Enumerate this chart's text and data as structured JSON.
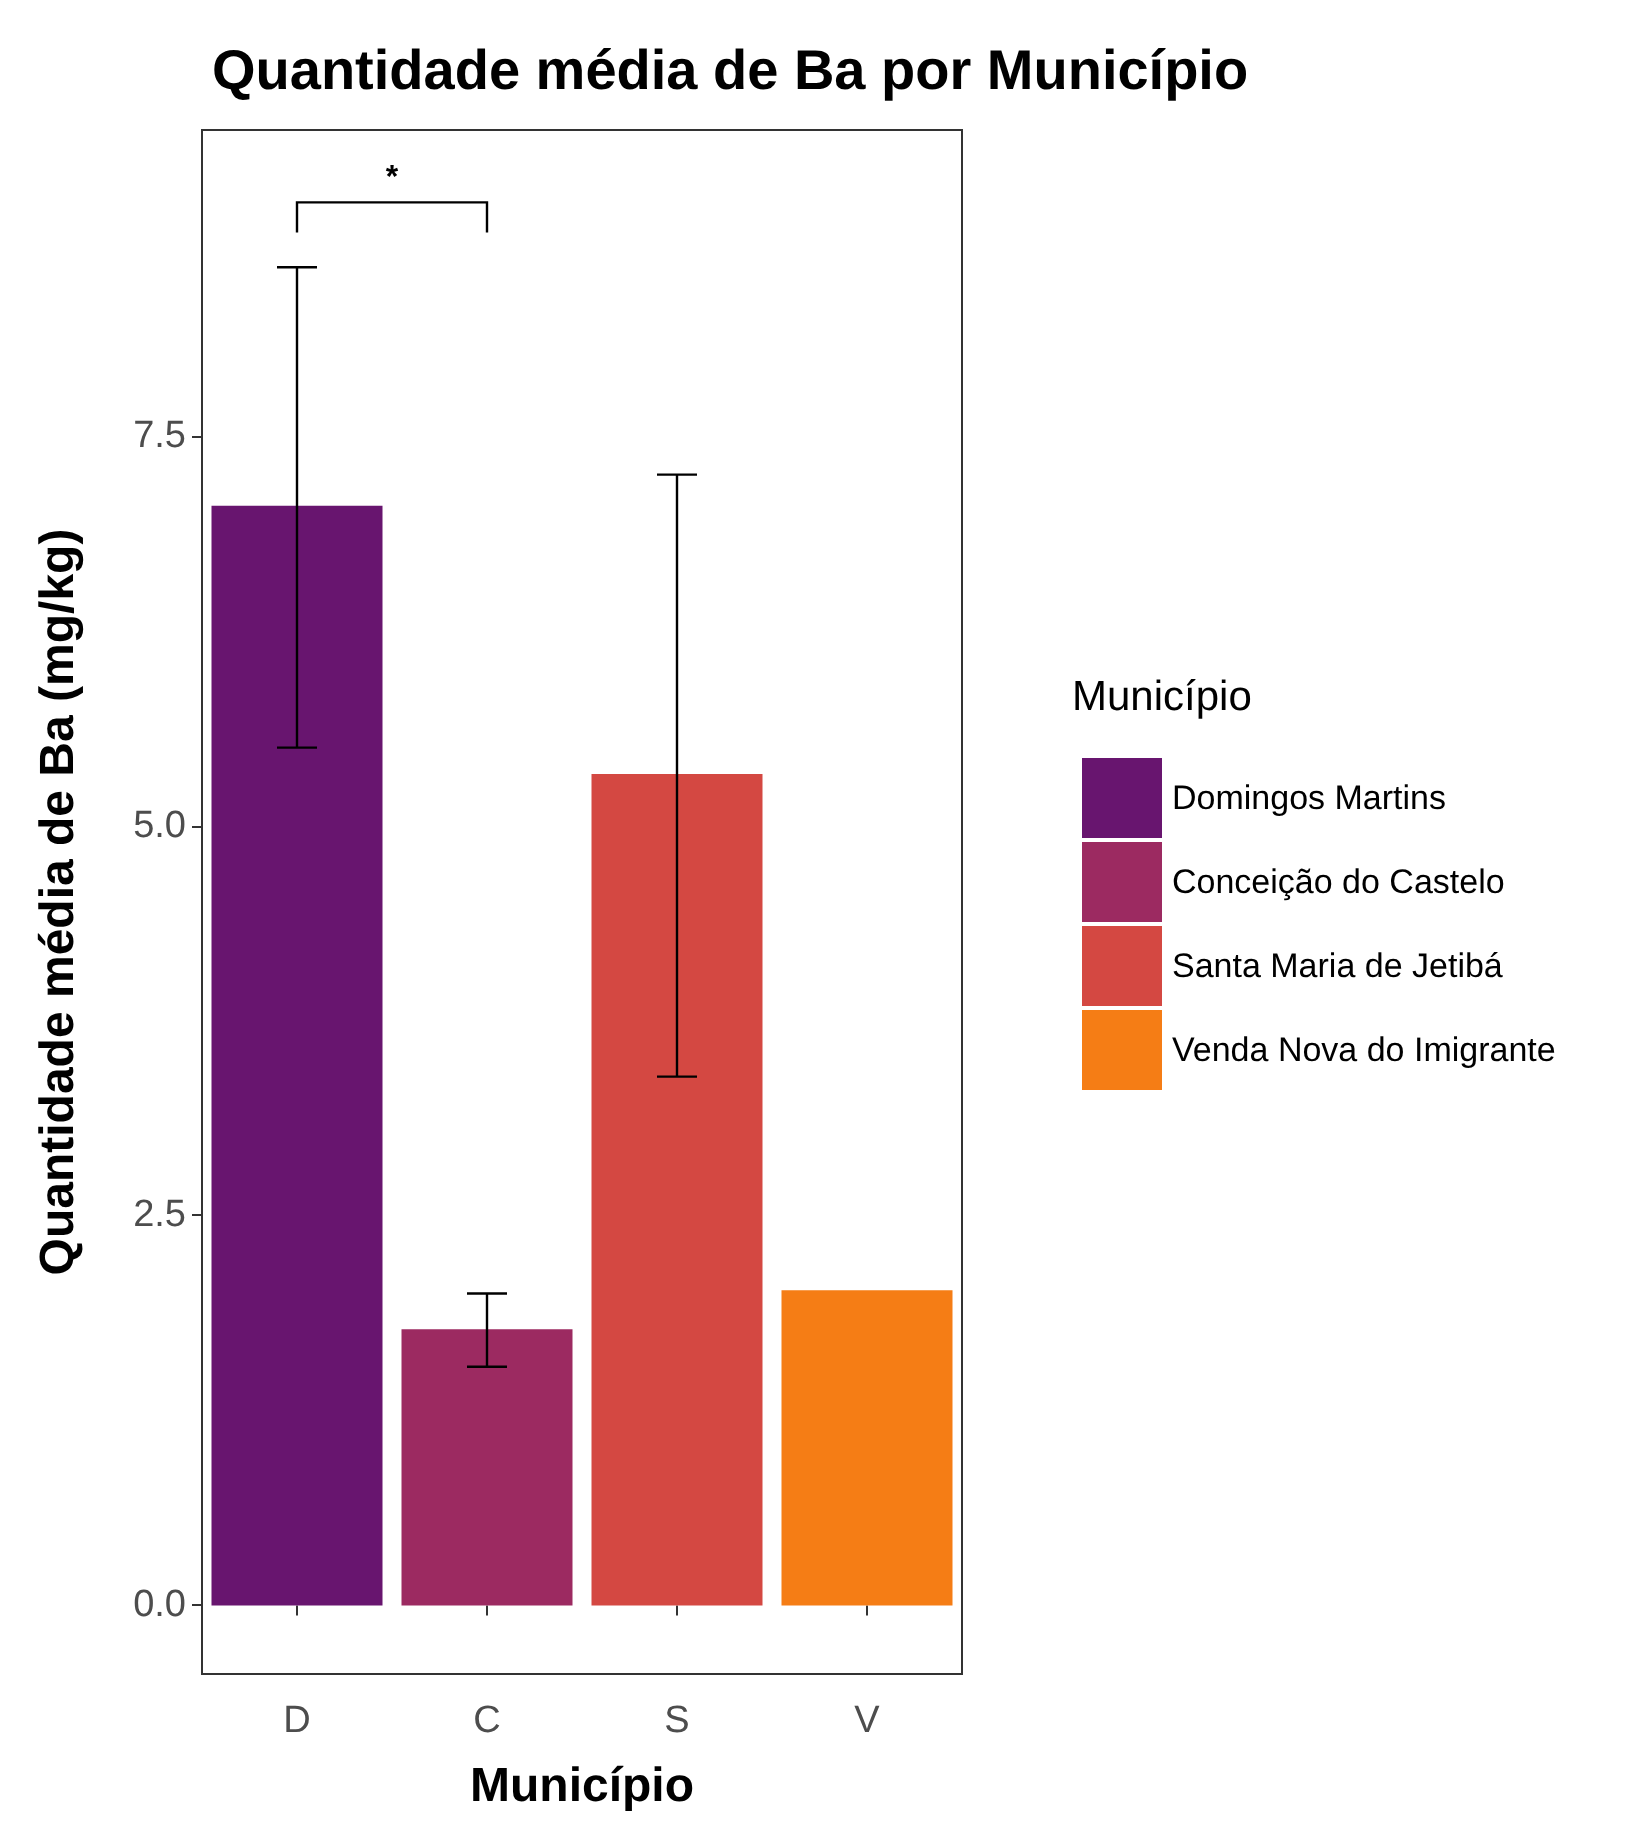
{
  "chart_data": {
    "type": "bar",
    "title": "Quantidade média de Ba por Município",
    "xlabel": "Município",
    "ylabel": "Quantidade média de Ba (mg/kg)",
    "legend_title": "Município",
    "legend": "right",
    "categories": [
      "D",
      "C",
      "S",
      "V"
    ],
    "series": [
      {
        "name": "Domingos Martins",
        "color": "#68156f",
        "values": [
          7.05,
          null,
          null,
          null
        ],
        "errors": [
          [
            5.5,
            8.58
          ],
          null,
          null,
          null
        ]
      },
      {
        "name": "Conceição do Castelo",
        "color": "#9c2a61",
        "values": [
          null,
          1.77,
          null,
          null
        ],
        "errors": [
          null,
          [
            1.53,
            2.0
          ],
          null,
          null
        ]
      },
      {
        "name": "Santa Maria de Jetibá",
        "color": "#d44842",
        "values": [
          null,
          null,
          5.33,
          null
        ],
        "errors": [
          null,
          null,
          [
            3.39,
            7.25
          ],
          null
        ]
      },
      {
        "name": "Venda Nova do Imigrante",
        "color": "#f57d15",
        "values": [
          null,
          null,
          null,
          2.02
        ]
      }
    ],
    "ylim": [
      -0.44,
      9.46
    ],
    "yticks": [
      {
        "value": 0,
        "label": "0.0"
      },
      {
        "value": 2.5,
        "label": "2.5"
      },
      {
        "value": 5,
        "label": "5.0"
      },
      {
        "value": 7.5,
        "label": "7.5"
      }
    ],
    "grid": false,
    "annotations": [
      "*"
    ]
  }
}
